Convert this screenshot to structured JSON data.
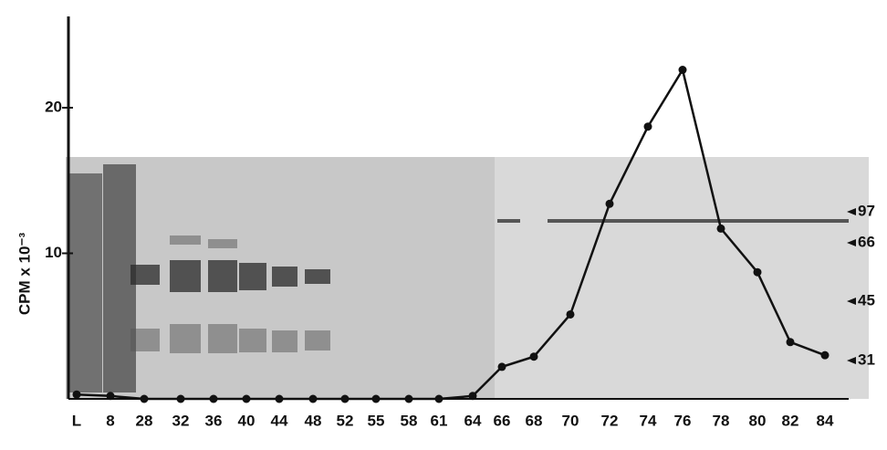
{
  "chart_data": {
    "type": "line",
    "y_label": "CPM x 10⁻³",
    "categories": [
      "L",
      "8",
      "28",
      "32",
      "36",
      "40",
      "44",
      "48",
      "52",
      "55",
      "58",
      "61",
      "64",
      "66",
      "68",
      "70",
      "72",
      "74",
      "76",
      "78",
      "80",
      "82",
      "84"
    ],
    "series": [
      {
        "color": "#111111",
        "values": [
          0.3,
          0.2,
          0,
          0,
          0,
          0,
          0,
          0,
          0,
          0,
          0,
          0,
          0.2,
          2.2,
          2.9,
          5.8,
          13.4,
          18.7,
          22.6,
          11.7,
          8.7,
          3.9,
          3.0
        ]
      }
    ],
    "ylim": [
      0,
      26
    ],
    "yticks": [
      10,
      20
    ],
    "annotations": [
      "97",
      "66",
      "45",
      "31"
    ]
  }
}
